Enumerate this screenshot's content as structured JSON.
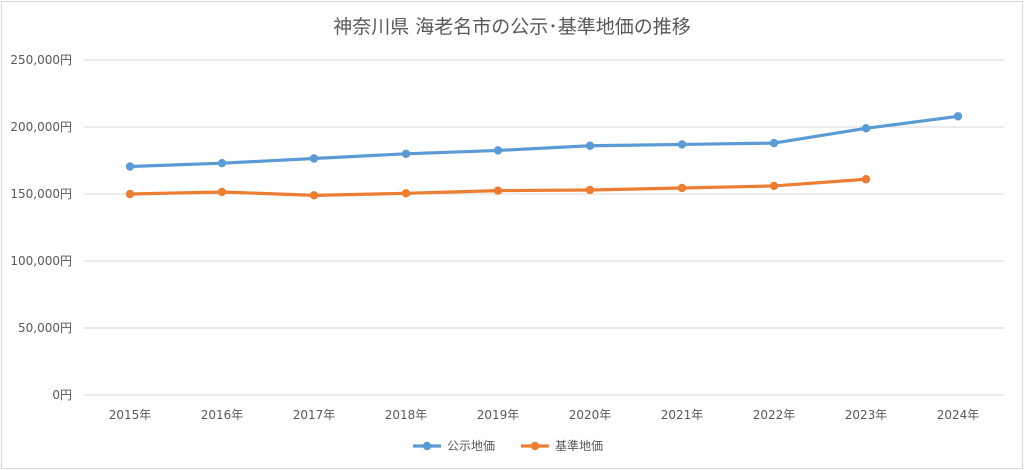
{
  "chart_data": {
    "type": "line",
    "title": "神奈川県 海老名市の公示･基準地価の推移",
    "xlabel": "",
    "ylabel": "",
    "categories": [
      "2015年",
      "2016年",
      "2017年",
      "2018年",
      "2019年",
      "2020年",
      "2021年",
      "2022年",
      "2023年",
      "2024年"
    ],
    "ylim": [
      0,
      250000
    ],
    "y_ticks": [
      0,
      50000,
      100000,
      150000,
      200000,
      250000
    ],
    "y_tick_labels": [
      "0円",
      "50,000円",
      "100,000円",
      "150,000円",
      "200,000円",
      "250,000円"
    ],
    "grid": true,
    "legend_position": "bottom",
    "series": [
      {
        "name": "公示地価",
        "color": "#5b9bd5",
        "values": [
          170500,
          173000,
          176500,
          180000,
          182500,
          186000,
          187000,
          188000,
          199000,
          208000
        ]
      },
      {
        "name": "基準地価",
        "color": "#ed7d31",
        "values": [
          150000,
          151500,
          149000,
          150500,
          152500,
          153000,
          154500,
          156000,
          161000,
          null
        ]
      }
    ]
  }
}
